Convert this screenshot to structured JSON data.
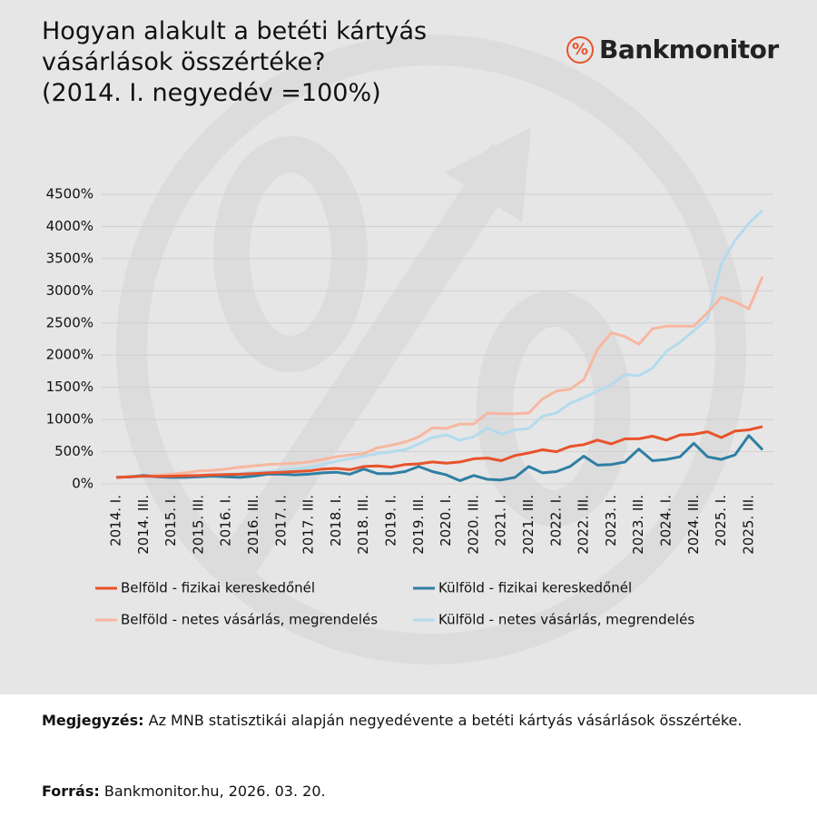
{
  "chart_data": {
    "type": "line",
    "title": "Hogyan alakult a betéti kártyás vásárlások összértéke?",
    "subtitle": "(2014. I. negyedév =100%)",
    "categories": [
      "2014. I.",
      null,
      "2014. III.",
      null,
      "2015. I.",
      null,
      "2015. III.",
      null,
      "2016. I.",
      null,
      "2016. III.",
      null,
      "2017. I.",
      null,
      "2017. III.",
      null,
      "2018. I.",
      null,
      "2018. III.",
      null,
      "2019. I.",
      null,
      "2019. III.",
      null,
      "2020. I.",
      null,
      "2020. III.",
      null,
      "2021. I.",
      null,
      "2021. III.",
      null,
      "2022. I.",
      null,
      "2022. III.",
      null,
      "2023. I.",
      null,
      "2023. III.",
      null,
      "2024. I.",
      null,
      "2024. III.",
      null,
      "2025. I.",
      null,
      "2025. III.",
      null
    ],
    "series": [
      {
        "name": "Belföld - fizikai kereskedőnél",
        "color": "#e8532b",
        "values": [
          100,
          110,
          120,
          115,
          120,
          125,
          130,
          140,
          145,
          150,
          160,
          170,
          180,
          190,
          200,
          230,
          240,
          220,
          270,
          280,
          260,
          300,
          310,
          340,
          320,
          340,
          390,
          400,
          360,
          440,
          480,
          530,
          500,
          580,
          610,
          680,
          620,
          700,
          700,
          740,
          680,
          760,
          770,
          810,
          720,
          820,
          840,
          890
        ]
      },
      {
        "name": "Külföld - fizikai kereskedőnél",
        "color": "#2f7fa3",
        "values": [
          100,
          110,
          130,
          110,
          100,
          100,
          110,
          120,
          110,
          100,
          120,
          150,
          150,
          140,
          150,
          170,
          180,
          150,
          230,
          160,
          160,
          190,
          270,
          190,
          140,
          50,
          130,
          70,
          60,
          100,
          270,
          170,
          190,
          270,
          430,
          290,
          300,
          340,
          540,
          360,
          380,
          420,
          630,
          420,
          380,
          450,
          750,
          530
        ]
      },
      {
        "name": "Belföld - netes vásárlás, megrendelés",
        "color": "#f7b7a0",
        "values": [
          100,
          110,
          120,
          130,
          150,
          170,
          200,
          210,
          230,
          260,
          280,
          300,
          310,
          320,
          340,
          380,
          420,
          450,
          470,
          560,
          600,
          650,
          730,
          870,
          860,
          930,
          930,
          1100,
          1090,
          1090,
          1100,
          1320,
          1440,
          1470,
          1620,
          2090,
          2350,
          2290,
          2170,
          2410,
          2450,
          2450,
          2450,
          2660,
          2900,
          2830,
          2720,
          3220
        ]
      },
      {
        "name": "Külföld - netes vásárlás, megrendelés",
        "color": "#b4dbee",
        "values": [
          100,
          100,
          110,
          110,
          120,
          120,
          130,
          140,
          150,
          160,
          180,
          190,
          210,
          230,
          250,
          300,
          350,
          390,
          430,
          470,
          500,
          530,
          620,
          720,
          760,
          680,
          730,
          870,
          770,
          840,
          860,
          1050,
          1100,
          1250,
          1340,
          1440,
          1540,
          1700,
          1680,
          1800,
          2060,
          2200,
          2380,
          2560,
          3420,
          3780,
          4050,
          4250
        ]
      }
    ],
    "ylim": [
      0,
      4500
    ],
    "yticks": [
      {
        "value": 0,
        "label": "0%"
      },
      {
        "value": 500,
        "label": "500%"
      },
      {
        "value": 1000,
        "label": "1000%"
      },
      {
        "value": 1500,
        "label": "1500%"
      },
      {
        "value": 2000,
        "label": "2000%"
      },
      {
        "value": 2500,
        "label": "2500%"
      },
      {
        "value": 3000,
        "label": "3000%"
      },
      {
        "value": 3500,
        "label": "3500%"
      },
      {
        "value": 4000,
        "label": "4000%"
      },
      {
        "value": 4500,
        "label": "4500%"
      }
    ],
    "grid": true,
    "legend": "bottom"
  },
  "brand": {
    "icon": "%",
    "name": "Bankmonitor"
  },
  "footer": {
    "note_label": "Megjegyzés:",
    "note": "Az MNB statisztikái alapján negyedévente a betéti kártyás vásárlások összértéke.",
    "source_label": "Forrás:",
    "source": "Bankmonitor.hu, 2026. 03. 20."
  }
}
